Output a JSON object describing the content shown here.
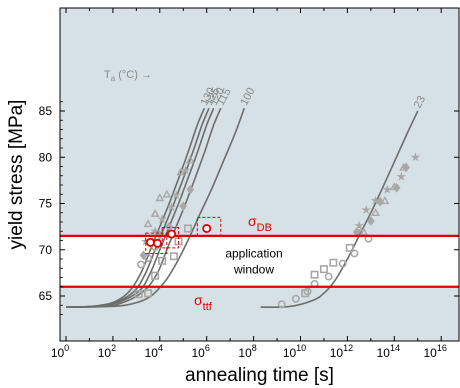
{
  "chart_data": {
    "type": "scatter",
    "title": "",
    "xlabel": "annealing time [s]",
    "ylabel": "yield stress [MPa]",
    "xscale": "log",
    "xlim_exp": [
      0,
      18
    ],
    "ylim": [
      62.5,
      87
    ],
    "x_tick_exponents": [
      0,
      2,
      4,
      6,
      8,
      10,
      12,
      14,
      16
    ],
    "y_ticks": [
      65,
      70,
      75,
      80,
      85
    ],
    "background": "#d5e1e4",
    "colors": {
      "curve": "#6d6d6d",
      "marker": "#a8a8a8",
      "accent": "#e00000",
      "window": "#ffffff"
    },
    "legend_header": {
      "base": "T",
      "sub": "a",
      "rest": " (°C) →"
    },
    "horizontal_lines": [
      {
        "name_base": "σ",
        "name_sub": "DB",
        "y": 71.5
      },
      {
        "name_base": "σ",
        "name_sub": "ttf",
        "y": 66.0
      }
    ],
    "window_label": [
      "application",
      "window"
    ],
    "curves": [
      {
        "label": "130",
        "points": [
          [
            0,
            63.8
          ],
          [
            1,
            63.85
          ],
          [
            2,
            64.3
          ],
          [
            2.7,
            65.5
          ],
          [
            3.2,
            67.5
          ],
          [
            3.6,
            70.0
          ],
          [
            4.0,
            72.5
          ],
          [
            4.4,
            75.0
          ],
          [
            4.8,
            77.7
          ],
          [
            5.2,
            80.5
          ],
          [
            5.6,
            83.5
          ],
          [
            5.9,
            85.3
          ]
        ]
      },
      {
        "label": "125",
        "points": [
          [
            0,
            63.8
          ],
          [
            1,
            63.85
          ],
          [
            2,
            64.2
          ],
          [
            2.9,
            65.5
          ],
          [
            3.4,
            67.5
          ],
          [
            3.8,
            70.0
          ],
          [
            4.2,
            72.5
          ],
          [
            4.6,
            75.0
          ],
          [
            5.0,
            77.7
          ],
          [
            5.4,
            80.5
          ],
          [
            5.8,
            83.5
          ],
          [
            6.1,
            85.3
          ]
        ]
      },
      {
        "label": "120",
        "points": [
          [
            0,
            63.8
          ],
          [
            1,
            63.85
          ],
          [
            2,
            64.1
          ],
          [
            3.1,
            65.5
          ],
          [
            3.6,
            67.5
          ],
          [
            4.0,
            70.0
          ],
          [
            4.4,
            72.5
          ],
          [
            4.8,
            75.0
          ],
          [
            5.2,
            77.7
          ],
          [
            5.6,
            80.5
          ],
          [
            6.0,
            83.5
          ],
          [
            6.3,
            85.3
          ]
        ]
      },
      {
        "label": "115",
        "points": [
          [
            0,
            63.8
          ],
          [
            1,
            63.82
          ],
          [
            2.2,
            64.1
          ],
          [
            3.3,
            65.5
          ],
          [
            3.9,
            67.5
          ],
          [
            4.3,
            70.0
          ],
          [
            4.7,
            72.5
          ],
          [
            5.1,
            75.0
          ],
          [
            5.5,
            77.7
          ],
          [
            5.9,
            80.5
          ],
          [
            6.3,
            83.5
          ],
          [
            6.6,
            85.3
          ]
        ]
      },
      {
        "label": "100",
        "points": [
          [
            0,
            63.8
          ],
          [
            1,
            63.81
          ],
          [
            2.5,
            64.0
          ],
          [
            3.5,
            64.8
          ],
          [
            4.2,
            66.5
          ],
          [
            4.7,
            68.5
          ],
          [
            5.2,
            71.0
          ],
          [
            5.7,
            73.8
          ],
          [
            6.2,
            76.5
          ],
          [
            6.7,
            79.5
          ],
          [
            7.2,
            82.5
          ],
          [
            7.6,
            85.3
          ]
        ]
      },
      {
        "label": "23",
        "points": [
          [
            8.3,
            63.8
          ],
          [
            9.5,
            63.85
          ],
          [
            10.5,
            64.5
          ],
          [
            11.0,
            65.3
          ],
          [
            11.5,
            66.8
          ],
          [
            12.0,
            69.0
          ],
          [
            12.5,
            71.5
          ],
          [
            13.0,
            74.0
          ],
          [
            13.5,
            76.7
          ],
          [
            14.0,
            79.5
          ],
          [
            14.5,
            82.3
          ],
          [
            15.0,
            85.0
          ]
        ]
      }
    ],
    "marker_series": [
      {
        "marker": "square",
        "points": [
          [
            3.1,
            65.2
          ],
          [
            3.5,
            65.3
          ],
          [
            3.8,
            67.2
          ],
          [
            4.1,
            68.8
          ],
          [
            4.6,
            69.3
          ],
          [
            4.8,
            70.9
          ],
          [
            5.2,
            72.3
          ],
          [
            10.2,
            65.3
          ],
          [
            10.6,
            67.3
          ],
          [
            11.0,
            67.9
          ],
          [
            11.4,
            68.6
          ],
          [
            12.1,
            70.2
          ],
          [
            12.5,
            71.8
          ]
        ]
      },
      {
        "marker": "circle",
        "points": [
          [
            3.2,
            68.4
          ],
          [
            3.5,
            69.1
          ],
          [
            3.8,
            70.3
          ],
          [
            9.2,
            64.1
          ],
          [
            9.8,
            64.7
          ],
          [
            10.3,
            65.5
          ],
          [
            10.6,
            66.3
          ],
          [
            11.2,
            67.1
          ],
          [
            11.8,
            68.5
          ],
          [
            12.3,
            69.6
          ],
          [
            12.9,
            71.2
          ]
        ]
      },
      {
        "marker": "diamond",
        "points": [
          [
            3.3,
            69.4
          ],
          [
            3.7,
            70.8
          ],
          [
            4.0,
            71.6
          ],
          [
            4.4,
            72.5
          ],
          [
            5.0,
            74.7
          ],
          [
            5.3,
            76.5
          ],
          [
            12.4,
            71.9
          ],
          [
            13.0,
            73.1
          ],
          [
            13.4,
            75.2
          ],
          [
            14.1,
            76.7
          ],
          [
            14.5,
            78.9
          ]
        ]
      },
      {
        "marker": "star",
        "points": [
          [
            3.4,
            70.9
          ],
          [
            3.8,
            72.0
          ],
          [
            4.1,
            73.3
          ],
          [
            4.5,
            74.6
          ],
          [
            4.7,
            75.9
          ],
          [
            5.1,
            78.6
          ],
          [
            12.5,
            72.6
          ],
          [
            12.8,
            74.3
          ],
          [
            13.2,
            75.3
          ],
          [
            13.7,
            76.5
          ],
          [
            14.3,
            77.9
          ],
          [
            14.9,
            80.0
          ]
        ]
      },
      {
        "marker": "triangle",
        "points": [
          [
            3.5,
            72.8
          ],
          [
            3.8,
            73.9
          ],
          [
            4.0,
            75.6
          ],
          [
            4.3,
            76.0
          ],
          [
            4.9,
            78.4
          ],
          [
            5.3,
            79.7
          ],
          [
            12.7,
            71.9
          ],
          [
            13.2,
            74.0
          ],
          [
            13.6,
            75.3
          ],
          [
            14.0,
            76.8
          ],
          [
            14.4,
            78.9
          ]
        ]
      }
    ],
    "highlight_points": [
      [
        3.6,
        70.8
      ],
      [
        3.9,
        70.7
      ],
      [
        4.5,
        71.7
      ],
      [
        6.0,
        72.3
      ]
    ],
    "highlight_boxes": [
      {
        "x": [
          3.4,
          4.3
        ],
        "y": [
          69.6,
          71.8
        ]
      },
      {
        "x": [
          4.1,
          4.8
        ],
        "y": [
          70.2,
          72.4
        ]
      },
      {
        "x": [
          5.6,
          6.6
        ],
        "y": [
          71.5,
          73.5
        ]
      }
    ]
  }
}
